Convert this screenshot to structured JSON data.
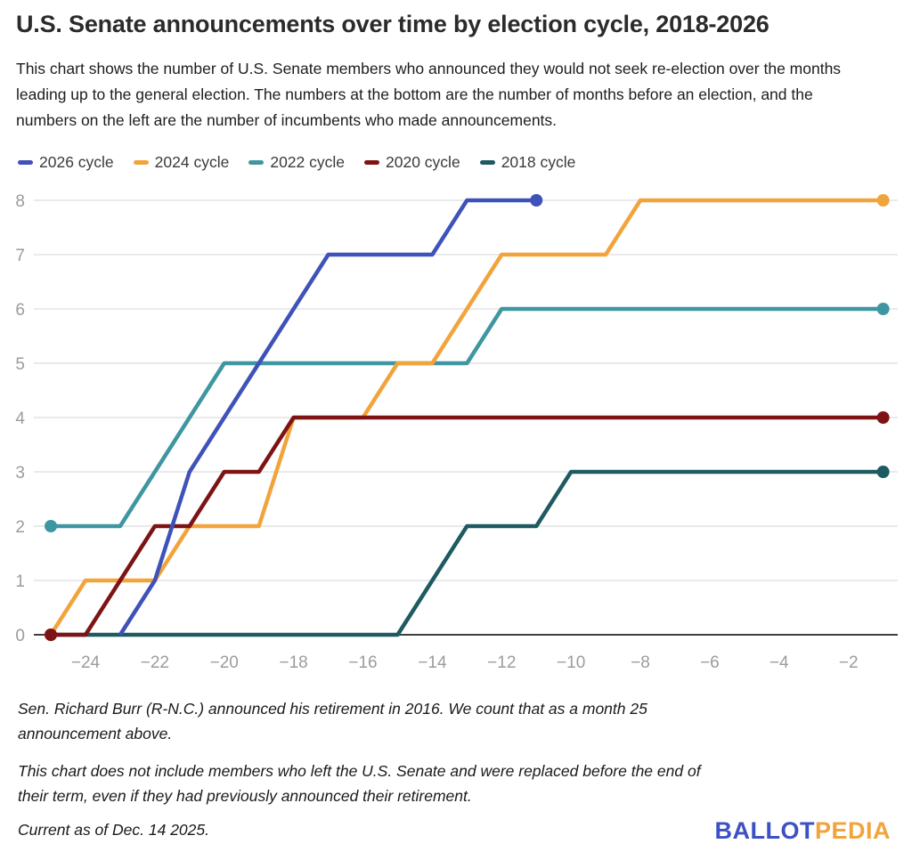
{
  "header": {
    "title": "U.S. Senate announcements over time by election cycle, 2018-2026",
    "subtitle": "This chart shows the number of U.S. Senate members who announced they would not seek re-election over the months leading up to the general election. The numbers at the bottom are the number of months before an election, and the numbers on the left are the number of incumbents who made announcements."
  },
  "chart_data": {
    "type": "line",
    "title": "U.S. Senate announcements over time by election cycle, 2018-2026",
    "xlabel": "",
    "ylabel": "",
    "x_range": [
      -25,
      -1
    ],
    "ylim": [
      0,
      8
    ],
    "y_ticks": [
      0,
      1,
      2,
      3,
      4,
      5,
      6,
      7,
      8
    ],
    "x_ticks": [
      -24,
      -22,
      -20,
      -18,
      -16,
      -14,
      -12,
      -10,
      -8,
      -6,
      -4,
      -2
    ],
    "grid": true,
    "legend_position": "top",
    "series": [
      {
        "name": "2026 cycle",
        "color": "#3E52B9",
        "start_month": -23,
        "dot_start": false,
        "dot_end": true,
        "values": [
          0,
          1,
          3,
          4,
          5,
          6,
          7,
          7,
          7,
          7,
          8,
          8,
          8
        ]
      },
      {
        "name": "2024 cycle",
        "color": "#F2A43C",
        "start_month": -25,
        "dot_start": true,
        "dot_end": true,
        "values": [
          0,
          1,
          1,
          1,
          2,
          2,
          2,
          4,
          4,
          4,
          5,
          5,
          6,
          7,
          7,
          7,
          7,
          8,
          8,
          8,
          8,
          8,
          8,
          8,
          8
        ]
      },
      {
        "name": "2022 cycle",
        "color": "#3E96A1",
        "start_month": -25,
        "dot_start": true,
        "dot_end": true,
        "values": [
          2,
          2,
          2,
          3,
          4,
          5,
          5,
          5,
          5,
          5,
          5,
          5,
          5,
          6,
          6,
          6,
          6,
          6,
          6,
          6,
          6,
          6,
          6,
          6,
          6
        ]
      },
      {
        "name": "2020 cycle",
        "color": "#7E1315",
        "start_month": -25,
        "dot_start": true,
        "dot_end": true,
        "values": [
          0,
          0,
          1,
          2,
          2,
          3,
          3,
          4,
          4,
          4,
          4,
          4,
          4,
          4,
          4,
          4,
          4,
          4,
          4,
          4,
          4,
          4,
          4,
          4,
          4
        ]
      },
      {
        "name": "2018 cycle",
        "color": "#1E5A61",
        "start_month": -25,
        "dot_start": true,
        "dot_end": true,
        "values": [
          0,
          0,
          0,
          0,
          0,
          0,
          0,
          0,
          0,
          0,
          0,
          1,
          2,
          2,
          2,
          3,
          3,
          3,
          3,
          3,
          3,
          3,
          3,
          3,
          3
        ]
      }
    ],
    "draw_order": [
      "2018 cycle",
      "2022 cycle",
      "2024 cycle",
      "2020 cycle",
      "2026 cycle"
    ],
    "style_colors": {
      "grid": "#EAEAEA",
      "axis": "#404040",
      "tick_label": "#9C9C9C"
    }
  },
  "footnotes": {
    "note1": "Sen. Richard Burr (R-N.C.) announced his retirement in 2016. We count that as a month 25 announcement above.",
    "note2": "This chart does not include members who left the U.S. Senate and were replaced before the end of their term, even if they had previously announced their retirement.",
    "current": "Current as of Dec. 14 2025."
  },
  "logo": {
    "part1": "BALLOT",
    "part2": "PEDIA",
    "part1_color": "#3D50C4",
    "part2_color": "#F2A43C"
  }
}
